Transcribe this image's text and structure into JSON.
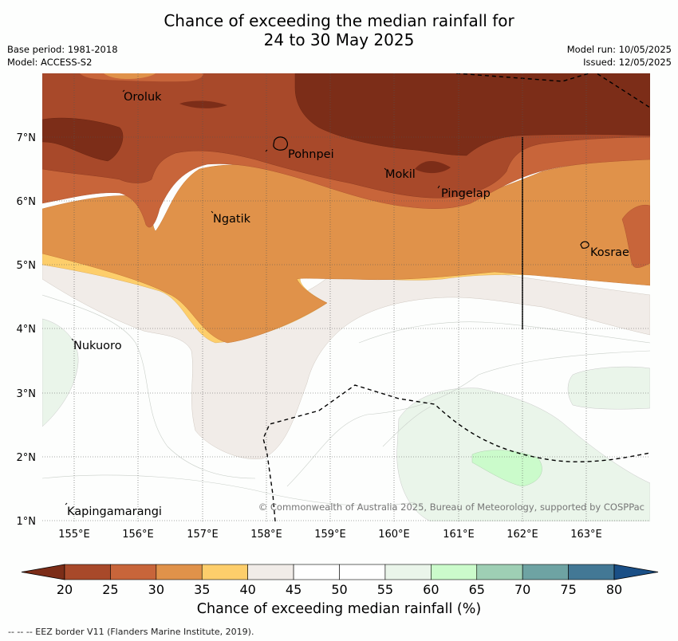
{
  "title": {
    "line1": "Chance of exceeding the median rainfall for",
    "line2": "24 to 30 May 2025"
  },
  "meta_left": {
    "base_period": "Base period: 1981-2018",
    "model": "Model: ACCESS-S2"
  },
  "meta_right": {
    "model_run": "Model run: 10/05/2025",
    "issued": "Issued: 12/05/2025"
  },
  "map": {
    "lon_labels": [
      "155°E",
      "156°E",
      "157°E",
      "158°E",
      "159°E",
      "160°E",
      "161°E",
      "162°E",
      "163°E"
    ],
    "lat_labels": [
      "7°N",
      "6°N",
      "5°N",
      "4°N",
      "3°N",
      "2°N",
      "1°N"
    ],
    "places": [
      "Oroluk",
      "Pohnpei",
      "Mokil",
      "Pingelap",
      "Ngatik",
      "Kosrae",
      "Nukuoro",
      "Kapingamarangi"
    ],
    "copyright": "© Commonwealth of Australia 2025, Bureau of Meteorology, supported by COSPPac"
  },
  "colorbar": {
    "ticks": [
      "20",
      "25",
      "30",
      "35",
      "40",
      "45",
      "50",
      "55",
      "60",
      "65",
      "70",
      "75",
      "80"
    ],
    "colors": [
      "#7c2d18",
      "#a8492a",
      "#c8653a",
      "#e0924a",
      "#fdce6b",
      "#f1ece8",
      "#ffffff",
      "#ffffff",
      "#eaf5ea",
      "#cbfbcb",
      "#9ecfb4",
      "#6ea3a3",
      "#437895",
      "#1a4f86"
    ],
    "title": "Chance of exceeding median rainfall (%)"
  },
  "footer": "--  --  -- EEZ border V11 (Flanders Marine Institute, 2019)."
}
